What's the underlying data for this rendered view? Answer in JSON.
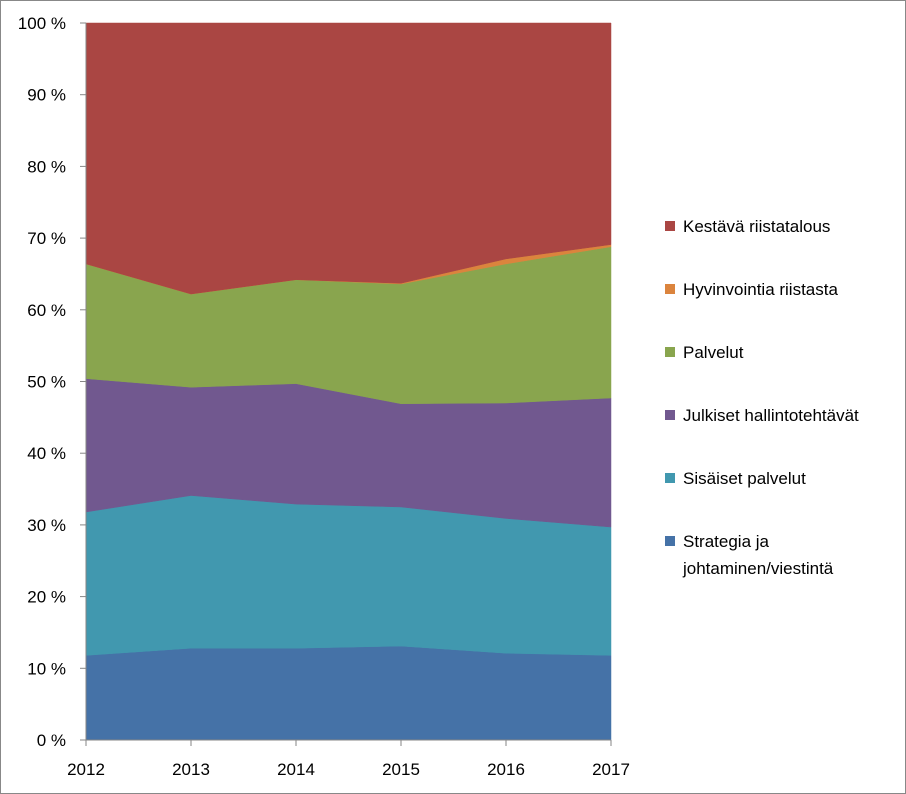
{
  "chart_data": {
    "type": "area",
    "stacked": "percent",
    "x": [
      "2012",
      "2013",
      "2014",
      "2015",
      "2016",
      "2017"
    ],
    "ylim": [
      0,
      100
    ],
    "y_ticks": [
      "0 %",
      "10 %",
      "20 %",
      "30 %",
      "40 %",
      "50 %",
      "60 %",
      "70 %",
      "80 %",
      "90 %",
      "100 %"
    ],
    "grid": false,
    "legend_position": "right",
    "series": [
      {
        "name": "Strategia ja johtaminen/viestintä",
        "legend_lines": [
          "Strategia ja",
          "johtaminen/viestintä"
        ],
        "color": "#4572A7",
        "values": [
          11.8,
          12.8,
          12.8,
          13.1,
          12.1,
          11.8
        ]
      },
      {
        "name": "Sisäiset palvelut",
        "legend_lines": [
          "Sisäiset palvelut"
        ],
        "color": "#4198AF",
        "values": [
          20.0,
          21.3,
          20.1,
          19.4,
          18.8,
          17.9
        ]
      },
      {
        "name": "Julkiset hallintotehtävät",
        "legend_lines": [
          "Julkiset hallintotehtävät"
        ],
        "color": "#71588F",
        "values": [
          18.6,
          15.1,
          16.8,
          14.4,
          16.1,
          18.0
        ]
      },
      {
        "name": "Palvelut",
        "legend_lines": [
          "Palvelut"
        ],
        "color": "#89A54E",
        "values": [
          16.0,
          13.0,
          14.5,
          16.7,
          19.4,
          21.1
        ]
      },
      {
        "name": "Hyvinvointia riistasta",
        "legend_lines": [
          "Hyvinvointia riistasta"
        ],
        "color": "#DB843D",
        "values": [
          0.0,
          0.0,
          0.0,
          0.1,
          0.7,
          0.3
        ]
      },
      {
        "name": "Kestävä riistatalous",
        "legend_lines": [
          "Kestävä riistatalous"
        ],
        "color": "#AA4643",
        "values": [
          33.6,
          37.8,
          35.8,
          36.3,
          32.9,
          30.9
        ]
      }
    ],
    "legend_order": [
      "Kestävä riistatalous",
      "Hyvinvointia riistasta",
      "Palvelut",
      "Julkiset hallintotehtävät",
      "Sisäiset palvelut",
      "Strategia ja johtaminen/viestintä"
    ]
  }
}
